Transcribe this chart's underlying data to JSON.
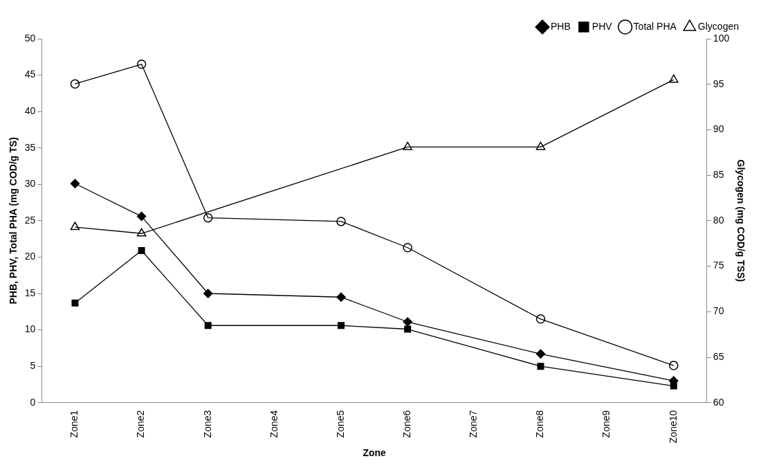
{
  "chart_data": {
    "type": "line",
    "xlabel": "Zone",
    "ylabel": "PHB, PHV, Total PHA (mg COD/g TS)",
    "y2label": "Glycogen (mg COD/g TSS)",
    "categories": [
      "Zone1",
      "Zone2",
      "Zone3",
      "Zone4",
      "Zone5",
      "Zone6",
      "Zone7",
      "Zone8",
      "Zone9",
      "Zone10"
    ],
    "series": [
      {
        "name": "PHB",
        "color": "#000000",
        "marker": "diamond",
        "values": [
          30.1,
          25.6,
          15.0,
          null,
          14.5,
          11.1,
          null,
          6.7,
          null,
          3.0
        ]
      },
      {
        "name": "PHV",
        "color": "#000000",
        "marker": "square",
        "values": [
          13.7,
          20.9,
          10.6,
          null,
          10.6,
          10.1,
          null,
          5.0,
          null,
          2.3
        ]
      },
      {
        "name": "Total PHA",
        "color": "#000000",
        "marker": "circle_open",
        "values": [
          43.8,
          46.5,
          25.4,
          null,
          24.9,
          21.3,
          null,
          11.5,
          null,
          5.1
        ]
      },
      {
        "name": "Glycogen",
        "color": "#000000",
        "marker": "triangle_open",
        "axis": "y2",
        "values": [
          79.3,
          78.6,
          null,
          null,
          null,
          88.1,
          null,
          88.1,
          null,
          95.5
        ]
      }
    ],
    "ylim": [
      0,
      50
    ],
    "yticks": [
      0,
      5,
      10,
      15,
      20,
      25,
      30,
      35,
      40,
      45,
      50
    ],
    "y2lim": [
      60,
      100
    ],
    "y2ticks": [
      60,
      65,
      70,
      75,
      80,
      85,
      90,
      95,
      100
    ],
    "grid": false,
    "legend": "top right"
  }
}
